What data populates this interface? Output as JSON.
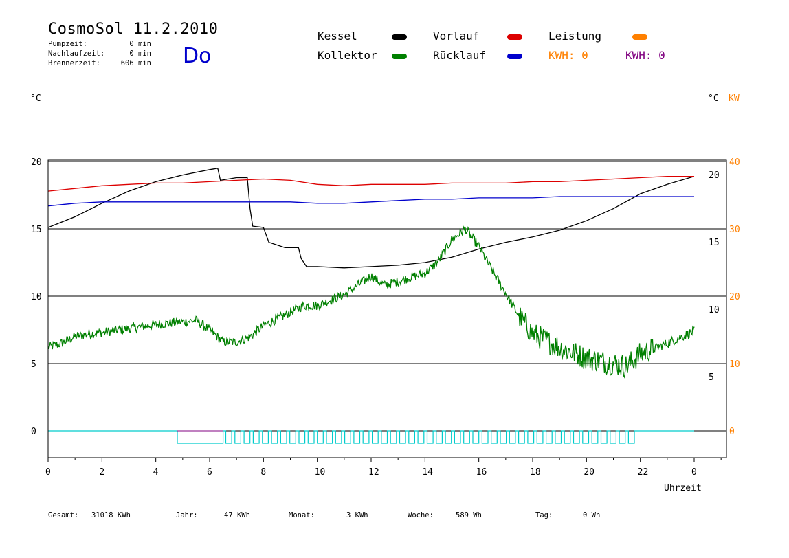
{
  "header": {
    "title": "CosmoSol 11.2.2010",
    "weekday": "Do",
    "stats": [
      {
        "label": "Pumpzeit:",
        "value": "0 min"
      },
      {
        "label": "Nachlaufzeit:",
        "value": "0 min"
      },
      {
        "label": "Brennerzeit:",
        "value": "606 min"
      }
    ]
  },
  "legend": {
    "kessel": "Kessel",
    "kollektor": "Kollektor",
    "vorlauf": "Vorlauf",
    "ruecklauf": "Rücklauf",
    "leistung": "Leistung",
    "kwh_label_1": "KWH:",
    "kwh_value_1": "0",
    "kwh_label_2": "KWH:",
    "kwh_value_2": "0"
  },
  "colors": {
    "kessel": "#000000",
    "kollektor": "#008000",
    "vorlauf": "#dd0000",
    "ruecklauf": "#0000cc",
    "leistung": "#ff8000",
    "kwh2": "#800080",
    "pump": "#00cccc"
  },
  "axes": {
    "left_unit": "°C",
    "right_unit_c": "°C",
    "right_unit_kw": "KW",
    "x_label": "Uhrzeit"
  },
  "footer": {
    "gesamt_label": "Gesamt:",
    "gesamt_value": "31018 KWh",
    "jahr_label": "Jahr:",
    "jahr_value": "47 KWh",
    "monat_label": "Monat:",
    "monat_value": "3 KWh",
    "woche_label": "Woche:",
    "woche_value": "589 Wh",
    "tag_label": "Tag:",
    "tag_value": "0 Wh"
  },
  "chart_data": {
    "type": "line",
    "title": "CosmoSol 11.2.2010",
    "xlabel": "Uhrzeit",
    "ylabel": "°C",
    "xlim": [
      0,
      24
    ],
    "ylim": [
      -2,
      20
    ],
    "x_ticks": [
      "0",
      "2",
      "4",
      "6",
      "8",
      "10",
      "12",
      "14",
      "16",
      "18",
      "20",
      "22",
      "0"
    ],
    "y_ticks_left": [
      "0",
      "5",
      "10",
      "15",
      "20"
    ],
    "y_ticks_right_c": [
      "5",
      "10",
      "15",
      "20"
    ],
    "y_ticks_right_kw": [
      "0",
      "10",
      "20",
      "30",
      "40"
    ],
    "grid": "horizontal",
    "series": [
      {
        "name": "Kessel",
        "color": "#000000",
        "points": [
          [
            0,
            15.1
          ],
          [
            1,
            15.9
          ],
          [
            2,
            16.9
          ],
          [
            3,
            17.8
          ],
          [
            4,
            18.5
          ],
          [
            5,
            19.0
          ],
          [
            6,
            19.4
          ],
          [
            6.3,
            19.5
          ],
          [
            6.4,
            18.6
          ],
          [
            7,
            18.8
          ],
          [
            7.4,
            18.8
          ],
          [
            7.5,
            16.5
          ],
          [
            7.6,
            15.2
          ],
          [
            8,
            15.1
          ],
          [
            8.2,
            14.0
          ],
          [
            8.8,
            13.6
          ],
          [
            9.3,
            13.6
          ],
          [
            9.4,
            12.8
          ],
          [
            9.6,
            12.2
          ],
          [
            10,
            12.2
          ],
          [
            11,
            12.1
          ],
          [
            12,
            12.2
          ],
          [
            13,
            12.3
          ],
          [
            14,
            12.5
          ],
          [
            15,
            12.9
          ],
          [
            16,
            13.5
          ],
          [
            17,
            14.0
          ],
          [
            18,
            14.4
          ],
          [
            19,
            14.9
          ],
          [
            20,
            15.6
          ],
          [
            21,
            16.5
          ],
          [
            22,
            17.6
          ],
          [
            23,
            18.3
          ],
          [
            24,
            18.9
          ]
        ]
      },
      {
        "name": "Vorlauf",
        "color": "#dd0000",
        "points": [
          [
            0,
            17.8
          ],
          [
            1,
            18.0
          ],
          [
            2,
            18.2
          ],
          [
            3,
            18.3
          ],
          [
            4,
            18.4
          ],
          [
            5,
            18.4
          ],
          [
            6,
            18.5
          ],
          [
            7,
            18.6
          ],
          [
            8,
            18.7
          ],
          [
            9,
            18.6
          ],
          [
            10,
            18.3
          ],
          [
            11,
            18.2
          ],
          [
            12,
            18.3
          ],
          [
            13,
            18.3
          ],
          [
            14,
            18.3
          ],
          [
            15,
            18.4
          ],
          [
            16,
            18.4
          ],
          [
            17,
            18.4
          ],
          [
            18,
            18.5
          ],
          [
            19,
            18.5
          ],
          [
            20,
            18.6
          ],
          [
            21,
            18.7
          ],
          [
            22,
            18.8
          ],
          [
            23,
            18.9
          ],
          [
            24,
            18.9
          ]
        ]
      },
      {
        "name": "Rücklauf",
        "color": "#0000cc",
        "points": [
          [
            0,
            16.7
          ],
          [
            1,
            16.9
          ],
          [
            2,
            17.0
          ],
          [
            3,
            17.0
          ],
          [
            4,
            17.0
          ],
          [
            5,
            17.0
          ],
          [
            6,
            17.0
          ],
          [
            7,
            17.0
          ],
          [
            8,
            17.0
          ],
          [
            9,
            17.0
          ],
          [
            10,
            16.9
          ],
          [
            11,
            16.9
          ],
          [
            12,
            17.0
          ],
          [
            13,
            17.1
          ],
          [
            14,
            17.2
          ],
          [
            15,
            17.2
          ],
          [
            16,
            17.3
          ],
          [
            17,
            17.3
          ],
          [
            18,
            17.3
          ],
          [
            19,
            17.4
          ],
          [
            20,
            17.4
          ],
          [
            21,
            17.4
          ],
          [
            22,
            17.4
          ],
          [
            23,
            17.4
          ],
          [
            24,
            17.4
          ]
        ]
      },
      {
        "name": "Kollektor",
        "color": "#008000",
        "noise": true,
        "points": [
          [
            0,
            6.2
          ],
          [
            0.5,
            6.5
          ],
          [
            1,
            7.0
          ],
          [
            1.5,
            7.2
          ],
          [
            2,
            7.3
          ],
          [
            3,
            7.6
          ],
          [
            4,
            7.9
          ],
          [
            5,
            8.1
          ],
          [
            5.5,
            8.2
          ],
          [
            6,
            7.5
          ],
          [
            6.5,
            6.6
          ],
          [
            7,
            6.6
          ],
          [
            7.5,
            7.0
          ],
          [
            8,
            7.8
          ],
          [
            9,
            8.8
          ],
          [
            9.5,
            9.3
          ],
          [
            10,
            9.3
          ],
          [
            10.5,
            9.7
          ],
          [
            11,
            10.1
          ],
          [
            12,
            11.5
          ],
          [
            12.5,
            10.8
          ],
          [
            13,
            11.1
          ],
          [
            14,
            11.7
          ],
          [
            14.5,
            12.6
          ],
          [
            15,
            14.2
          ],
          [
            15.5,
            15.0
          ],
          [
            16,
            13.7
          ],
          [
            16.5,
            11.9
          ],
          [
            17,
            10.2
          ],
          [
            17.5,
            8.5
          ],
          [
            18,
            7.2
          ],
          [
            19,
            6.2
          ],
          [
            20,
            5.4
          ],
          [
            21,
            5.0
          ],
          [
            21.5,
            4.8
          ],
          [
            22,
            5.7
          ],
          [
            23,
            6.5
          ],
          [
            24,
            7.4
          ]
        ]
      }
    ],
    "pump_signal": {
      "name": "Pumpe",
      "color": "#00cccc",
      "on_from": 4.8,
      "on_to": 21.8
    }
  }
}
